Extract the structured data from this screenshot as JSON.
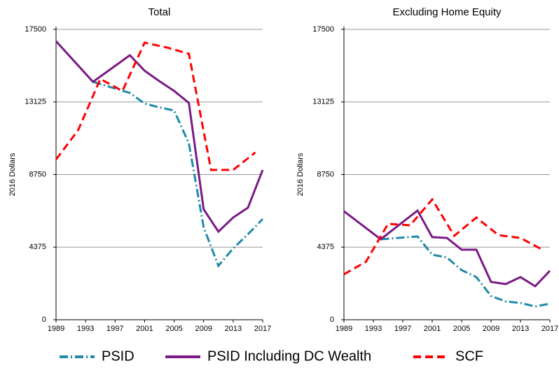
{
  "chart_data": [
    {
      "type": "line",
      "title": "Total",
      "y_label": "2016 Dollars",
      "xlim": [
        1989,
        2017
      ],
      "xticks": [
        1989,
        1993,
        1997,
        2001,
        2005,
        2009,
        2013,
        2017
      ],
      "ylim": [
        0,
        17500
      ],
      "yticks": [
        0,
        4375,
        8750,
        13125,
        17500
      ],
      "grid": true,
      "series": [
        {
          "name": "PSID",
          "color": "#1f8aa8",
          "dash": "dashdot",
          "x": [
            1994,
            1999,
            2001,
            2003,
            2005,
            2007,
            2009,
            2011,
            2013,
            2015,
            2017
          ],
          "values": [
            14340,
            13670,
            13030,
            12800,
            12610,
            10630,
            5570,
            3250,
            4300,
            5150,
            6070
          ]
        },
        {
          "name": "PSID Including DC Wealth",
          "color": "#7a1a85",
          "dash": "solid",
          "x": [
            1989,
            1994,
            1999,
            2001,
            2003,
            2005,
            2007,
            2009,
            2011,
            2013,
            2015,
            2017
          ],
          "values": [
            16790,
            14340,
            15940,
            15010,
            14380,
            13790,
            13070,
            6660,
            5310,
            6160,
            6750,
            9030
          ]
        },
        {
          "name": "SCF",
          "color": "#ff0000",
          "dash": "dashed",
          "x": [
            1989,
            1992,
            1995,
            1998,
            2001,
            2004,
            2007,
            2010,
            2013,
            2016
          ],
          "values": [
            9660,
            11430,
            14510,
            13790,
            16700,
            16410,
            16030,
            9030,
            9030,
            10080
          ]
        }
      ]
    },
    {
      "type": "line",
      "title": "Excluding Home Equity",
      "y_label": "2016 Dollars",
      "xlim": [
        1989,
        2017
      ],
      "xticks": [
        1989,
        1993,
        1997,
        2001,
        2005,
        2009,
        2013,
        2017
      ],
      "ylim": [
        0,
        17500
      ],
      "yticks": [
        0,
        4375,
        8750,
        13125,
        17500
      ],
      "grid": true,
      "series": [
        {
          "name": "PSID",
          "color": "#1f8aa8",
          "dash": "dashdot",
          "x": [
            1994,
            1999,
            2001,
            2003,
            2005,
            2007,
            2009,
            2011,
            2013,
            2015,
            2017
          ],
          "values": [
            4850,
            5020,
            3920,
            3750,
            2990,
            2570,
            1430,
            1100,
            1010,
            800,
            970
          ]
        },
        {
          "name": "PSID Including DC Wealth",
          "color": "#7a1a85",
          "dash": "solid",
          "x": [
            1989,
            1994,
            1999,
            2001,
            2003,
            2005,
            2007,
            2009,
            2011,
            2013,
            2015,
            2017
          ],
          "values": [
            6540,
            4850,
            6580,
            4980,
            4930,
            4220,
            4220,
            2280,
            2150,
            2570,
            2020,
            2950
          ]
        },
        {
          "name": "SCF",
          "color": "#ff0000",
          "dash": "dashed",
          "x": [
            1989,
            1992,
            1995,
            1998,
            2001,
            2004,
            2007,
            2010,
            2013,
            2016
          ],
          "values": [
            2740,
            3500,
            5780,
            5690,
            7250,
            5060,
            6160,
            5100,
            4930,
            4220
          ]
        }
      ]
    }
  ]
}
